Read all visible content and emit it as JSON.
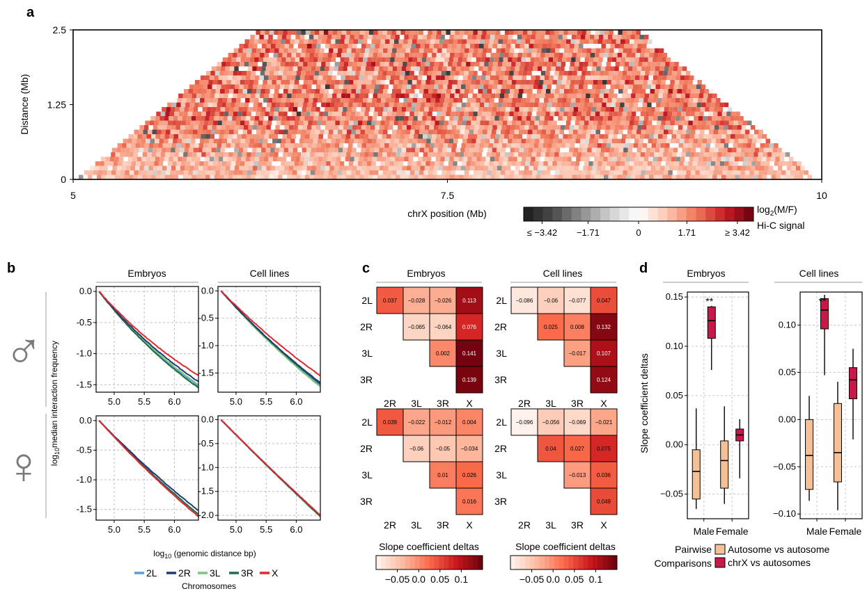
{
  "panel_letters": [
    "a",
    "b",
    "c",
    "d"
  ],
  "colors": {
    "2L": "#5b9bd5",
    "2R": "#1f3b73",
    "3L": "#7cc47f",
    "3R": "#1f6b4a",
    "X": "#e0282e",
    "heat_neg_dark": "#1a1a1a",
    "heat_pos_dark": "#67000d",
    "box_autosome": "#f4c095",
    "box_chrx": "#c8184a"
  },
  "chart_data": [
    {
      "type": "heatmap",
      "panel": "a",
      "title": "",
      "xlabel": "chrX position (Mb)",
      "ylabel": "Distance (Mb)",
      "xlim": [
        5,
        10
      ],
      "ylim": [
        0,
        2.5
      ],
      "x_ticks": [
        "5",
        "7.5",
        "10"
      ],
      "y_ticks": [
        "0",
        "1.25",
        "2.5"
      ],
      "colorbar": {
        "title_main": "log",
        "title_sub": "2",
        "title_rest": "(M/F)",
        "title_line2": "Hi-C signal",
        "ticks": [
          "≤ −3.42",
          "−1.71",
          "0",
          "1.71",
          "≥ 3.42"
        ],
        "range": [
          -3.42,
          3.42
        ]
      }
    },
    {
      "type": "line",
      "panel": "b",
      "column_titles": [
        "Embryos",
        "Cell lines"
      ],
      "xlabel_prefix": "log",
      "xlabel_sub": "10",
      "xlabel_rest": " (genomic distance bp)",
      "ylabel_prefix": "log",
      "ylabel_sub": "10",
      "ylabel_rest": "median interaction frequency",
      "x_ticks": [
        "5.0",
        "5.5",
        "6.0"
      ],
      "xlim": [
        4.7,
        6.4
      ],
      "sex_symbols": [
        "♂",
        "♀"
      ],
      "legend_title": "Chromosomes",
      "legend": [
        "2L",
        "2R",
        "3L",
        "3R",
        "X"
      ],
      "subplots": [
        {
          "id": "male-embryos",
          "ylim": [
            -1.62,
            0.08
          ],
          "y_ticks": [
            "0.0",
            "-0.5",
            "-1.0",
            "-1.5"
          ],
          "y_tick_values": [
            0,
            -0.5,
            -1.0,
            -1.5
          ],
          "end_values": {
            "2L": -1.52,
            "2R": -1.45,
            "3L": -1.5,
            "3R": -1.55,
            "X": -1.35
          },
          "curvature": 0.35
        },
        {
          "id": "male-cells",
          "ylim": [
            -1.85,
            0.08
          ],
          "y_ticks": [
            "0.0",
            "-0.5",
            "-1.0",
            "-1.5"
          ],
          "y_tick_values": [
            0,
            -0.5,
            -1.0,
            -1.5
          ],
          "end_values": {
            "2L": -1.72,
            "2R": -1.68,
            "3L": -1.75,
            "3R": -1.7,
            "X": -1.55
          },
          "curvature": 0.2
        },
        {
          "id": "female-embryos",
          "ylim": [
            -1.68,
            0.08
          ],
          "y_ticks": [
            "0.0",
            "-0.5",
            "-1.0",
            "-1.5"
          ],
          "y_tick_values": [
            0,
            -0.5,
            -1.0,
            -1.5
          ],
          "end_values": {
            "2L": -1.62,
            "2R": -1.52,
            "3L": -1.6,
            "3R": -1.58,
            "X": -1.62
          },
          "curvature": 0.15
        },
        {
          "id": "female-cells",
          "ylim": [
            -2.1,
            0.08
          ],
          "y_ticks": [
            "0.0",
            "-0.5",
            "-1.0",
            "-1.5",
            "-2.0"
          ],
          "y_tick_values": [
            0,
            -0.5,
            -1.0,
            -1.5,
            -2.0
          ],
          "end_values": {
            "2L": -2.02,
            "2R": -2.0,
            "3L": -2.03,
            "3R": -2.02,
            "X": -2.0
          },
          "curvature": 0.05
        }
      ]
    },
    {
      "type": "heatmap",
      "panel": "c",
      "column_titles": [
        "Embryos",
        "Cell lines"
      ],
      "row_labels": [
        "2L",
        "2R",
        "3L",
        "3R"
      ],
      "col_labels": [
        "2R",
        "3L",
        "3R",
        "X"
      ],
      "colorbar_title": "Slope coefficient deltas",
      "colorbar_ticks": [
        "−0.05",
        "0.0",
        "0.05",
        "0.1"
      ],
      "colorbar_range": [
        -0.1,
        0.15
      ],
      "matrices": [
        {
          "id": "embryos-male",
          "values": [
            [
              "0.037",
              "−0.028",
              "−0.026",
              "0.113"
            ],
            [
              null,
              "−0.065",
              "−0.064",
              "0.076"
            ],
            [
              null,
              null,
              "0.002",
              "0.141"
            ],
            [
              null,
              null,
              null,
              "0.139"
            ]
          ]
        },
        {
          "id": "cells-male",
          "values": [
            [
              "−0.086",
              "−0.06",
              "−0.077",
              "0.047"
            ],
            [
              null,
              "0.025",
              "0.008",
              "0.132"
            ],
            [
              null,
              null,
              "−0.017",
              "0.107"
            ],
            [
              null,
              null,
              null,
              "0.124"
            ]
          ]
        },
        {
          "id": "embryos-female",
          "values": [
            [
              "0.039",
              "−0.022",
              "−0.012",
              "0.004"
            ],
            [
              null,
              "−0.06",
              "−0.05",
              "−0.034"
            ],
            [
              null,
              null,
              "0.01",
              "0.026"
            ],
            [
              null,
              null,
              null,
              "0.016"
            ]
          ]
        },
        {
          "id": "cells-female",
          "values": [
            [
              "−0.096",
              "−0.056",
              "−0.069",
              "−0.021"
            ],
            [
              null,
              "0.04",
              "0.027",
              "0.075"
            ],
            [
              null,
              null,
              "−0.013",
              "0.036"
            ],
            [
              null,
              null,
              null,
              "0.049"
            ]
          ]
        }
      ]
    },
    {
      "type": "box",
      "panel": "d",
      "column_titles": [
        "Embryos",
        "Cell lines"
      ],
      "ylabel": "Slope coefficient deltas",
      "categories": [
        "Male",
        "Female"
      ],
      "significance": "**",
      "legend_title_line1": "Pairwise",
      "legend_title_line2": "Comparisons",
      "legend": [
        "Autosome vs autosome",
        "chrX vs autosomes"
      ],
      "subplots": [
        {
          "id": "embryos",
          "ylim": [
            -0.075,
            0.155
          ],
          "y_ticks": [
            "−0.05",
            "0.00",
            "0.05",
            "0.10",
            "0.15"
          ],
          "y_tick_values": [
            -0.05,
            0,
            0.05,
            0.1,
            0.15
          ],
          "boxes": [
            {
              "group": "Male",
              "series": "Autosome vs autosome",
              "whisker_low": -0.065,
              "q1": -0.055,
              "median": -0.027,
              "q3": -0.005,
              "whisker_high": 0.037
            },
            {
              "group": "Male",
              "series": "chrX vs autosomes",
              "whisker_low": 0.076,
              "q1": 0.108,
              "median": 0.126,
              "q3": 0.14,
              "whisker_high": 0.141
            },
            {
              "group": "Female",
              "series": "Autosome vs autosome",
              "whisker_low": -0.06,
              "q1": -0.044,
              "median": -0.016,
              "q3": 0.004,
              "whisker_high": 0.039
            },
            {
              "group": "Female",
              "series": "chrX vs autosomes",
              "whisker_low": -0.034,
              "q1": 0.004,
              "median": 0.01,
              "q3": 0.016,
              "whisker_high": 0.026
            }
          ]
        },
        {
          "id": "cell-lines",
          "ylim": [
            -0.105,
            0.135
          ],
          "y_ticks": [
            "−0.10",
            "−0.05",
            "0.00",
            "0.05",
            "0.10"
          ],
          "y_tick_values": [
            -0.1,
            -0.05,
            0,
            0.05,
            0.1
          ],
          "boxes": [
            {
              "group": "Male",
              "series": "Autosome vs autosome",
              "whisker_low": -0.086,
              "q1": -0.074,
              "median": -0.038,
              "q3": 0.0,
              "whisker_high": 0.025
            },
            {
              "group": "Male",
              "series": "chrX vs autosomes",
              "whisker_low": 0.047,
              "q1": 0.096,
              "median": 0.116,
              "q3": 0.128,
              "whisker_high": 0.132
            },
            {
              "group": "Female",
              "series": "Autosome vs autosome",
              "whisker_low": -0.096,
              "q1": -0.066,
              "median": -0.035,
              "q3": 0.017,
              "whisker_high": 0.04
            },
            {
              "group": "Female",
              "series": "chrX vs autosomes",
              "whisker_low": -0.021,
              "q1": 0.022,
              "median": 0.042,
              "q3": 0.055,
              "whisker_high": 0.075
            }
          ]
        }
      ]
    }
  ]
}
